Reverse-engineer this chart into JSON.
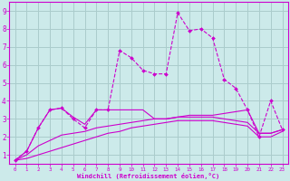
{
  "title": "",
  "xlabel": "Windchill (Refroidissement éolien,°C)",
  "background_color": "#cceaea",
  "grid_color": "#aacccc",
  "line_color": "#cc00cc",
  "xlim": [
    -0.5,
    23.5
  ],
  "ylim": [
    0.5,
    9.5
  ],
  "xticks": [
    0,
    1,
    2,
    3,
    4,
    5,
    6,
    7,
    8,
    9,
    10,
    11,
    12,
    13,
    14,
    15,
    16,
    17,
    18,
    19,
    20,
    21,
    22,
    23
  ],
  "yticks": [
    1,
    2,
    3,
    4,
    5,
    6,
    7,
    8,
    9
  ],
  "series1_x": [
    0,
    1,
    2,
    3,
    4,
    5,
    6,
    7,
    8,
    9,
    10,
    11,
    12,
    13,
    14,
    15,
    16,
    17,
    18,
    19,
    20,
    21,
    22,
    23
  ],
  "series1_y": [
    0.7,
    1.2,
    2.5,
    3.5,
    3.6,
    3.0,
    2.5,
    3.5,
    3.5,
    6.8,
    6.4,
    5.7,
    5.5,
    5.5,
    8.9,
    7.9,
    8.0,
    7.5,
    5.2,
    4.7,
    3.5,
    2.0,
    4.0,
    2.4
  ],
  "series2_x": [
    0,
    1,
    2,
    3,
    4,
    5,
    6,
    7,
    8,
    9,
    10,
    11,
    12,
    13,
    14,
    15,
    16,
    17,
    18,
    19,
    20,
    21,
    22,
    23
  ],
  "series2_y": [
    0.7,
    1.2,
    2.5,
    3.5,
    3.6,
    3.1,
    2.7,
    3.5,
    3.5,
    3.5,
    3.5,
    3.5,
    3.0,
    3.0,
    3.1,
    3.2,
    3.2,
    3.2,
    3.3,
    3.4,
    3.5,
    2.2,
    2.2,
    2.4
  ],
  "series3_x": [
    0,
    1,
    2,
    3,
    4,
    5,
    6,
    7,
    8,
    9,
    10,
    11,
    12,
    13,
    14,
    15,
    16,
    17,
    18,
    19,
    20,
    21,
    22,
    23
  ],
  "series3_y": [
    0.7,
    1.0,
    1.5,
    1.8,
    2.1,
    2.2,
    2.3,
    2.5,
    2.6,
    2.7,
    2.8,
    2.9,
    3.0,
    3.0,
    3.1,
    3.1,
    3.1,
    3.1,
    3.0,
    2.9,
    2.8,
    2.2,
    2.2,
    2.4
  ],
  "series4_x": [
    0,
    1,
    2,
    3,
    4,
    5,
    6,
    7,
    8,
    9,
    10,
    11,
    12,
    13,
    14,
    15,
    16,
    17,
    18,
    19,
    20,
    21,
    22,
    23
  ],
  "series4_y": [
    0.7,
    0.8,
    1.0,
    1.2,
    1.4,
    1.6,
    1.8,
    2.0,
    2.2,
    2.3,
    2.5,
    2.6,
    2.7,
    2.8,
    2.9,
    2.9,
    2.9,
    2.9,
    2.8,
    2.7,
    2.6,
    2.0,
    2.0,
    2.3
  ],
  "xlabel_fontsize": 5.0,
  "tick_fontsize_x": 4.2,
  "tick_fontsize_y": 5.5
}
